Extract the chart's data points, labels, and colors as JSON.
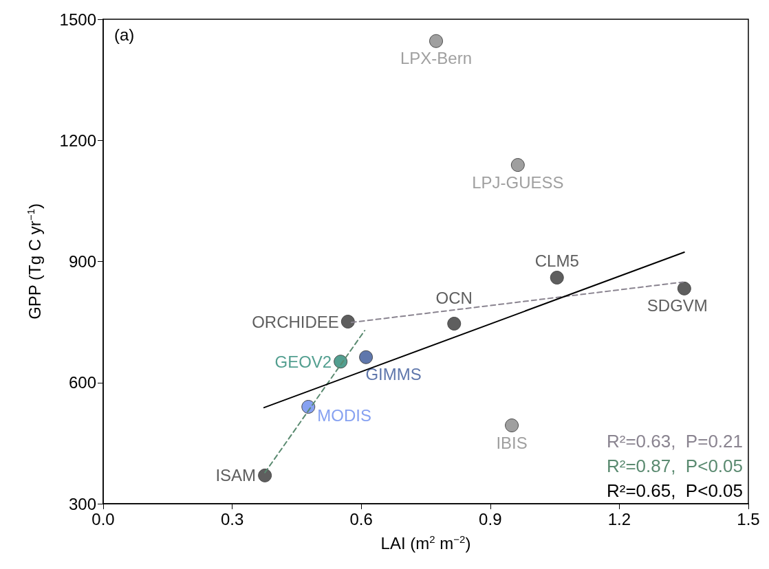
{
  "chart_data": {
    "type": "scatter",
    "xlabel": "LAI (m$^{2}$ m$^{−2}$)",
    "ylabel": "GPP (Tg C yr$^{−1}$)",
    "xlim": [
      0,
      1.5
    ],
    "xticks": [
      {
        "value": 0,
        "label": "0.0"
      },
      0.3,
      0.6,
      0.9,
      1.2,
      1.5
    ],
    "ylim": [
      300,
      1500
    ],
    "yticks": [
      300,
      600,
      900,
      1200,
      1500
    ],
    "grid": false,
    "annotations": [
      "(a)"
    ],
    "series": [
      {
        "name": "ISAM",
        "color": "#555555",
        "marker": "circle",
        "x": [
          0.376
        ],
        "values": [
          370
        ]
      },
      {
        "name": "MODIS",
        "color": "#7f9cf0",
        "marker": "circle",
        "x": [
          0.477
        ],
        "values": [
          540
        ]
      },
      {
        "name": "GEOV2",
        "color": "#4a9a8a",
        "marker": "circle",
        "x": [
          0.552
        ],
        "values": [
          652
        ]
      },
      {
        "name": "ORCHIDEE",
        "color": "#555555",
        "marker": "circle",
        "x": [
          0.569
        ],
        "values": [
          751
        ]
      },
      {
        "name": "GIMMS",
        "color": "#5670a8",
        "marker": "circle",
        "x": [
          0.611
        ],
        "values": [
          663
        ]
      },
      {
        "name": "OCN",
        "color": "#555555",
        "marker": "circle",
        "x": [
          0.816
        ],
        "values": [
          746
        ]
      },
      {
        "name": "LPX-Bern",
        "color": "#9a9a9a",
        "marker": "circle",
        "x": [
          0.774
        ],
        "values": [
          1446
        ]
      },
      {
        "name": "IBIS",
        "color": "#9a9a9a",
        "marker": "circle",
        "x": [
          0.95
        ],
        "values": [
          494
        ]
      },
      {
        "name": "LPJ-GUESS",
        "color": "#9a9a9a",
        "marker": "circle",
        "x": [
          0.964
        ],
        "values": [
          1139
        ]
      },
      {
        "name": "CLM5",
        "color": "#555555",
        "marker": "circle",
        "x": [
          1.055
        ],
        "values": [
          860
        ]
      },
      {
        "name": "SDGVM",
        "color": "#555555",
        "marker": "circle",
        "x": [
          1.351
        ],
        "values": [
          833
        ]
      },
      {
        "name": "R²=0.63,  P=0.21",
        "type": "line",
        "color": "#8a8490",
        "line_style": "dashed",
        "x": [
          0.577,
          1.348
        ],
        "values": [
          749,
          849
        ]
      },
      {
        "name": "R²=0.87,  P<0.05",
        "type": "line",
        "color": "#5a8a70",
        "line_style": "dashed",
        "x": [
          0.376,
          0.608
        ],
        "values": [
          377,
          729
        ]
      },
      {
        "name": "R²=0.65,  P<0.05",
        "type": "line",
        "color": "#000000",
        "line_style": "solid",
        "x": [
          0.374,
          1.351
        ],
        "values": [
          538,
          923
        ]
      }
    ]
  }
}
